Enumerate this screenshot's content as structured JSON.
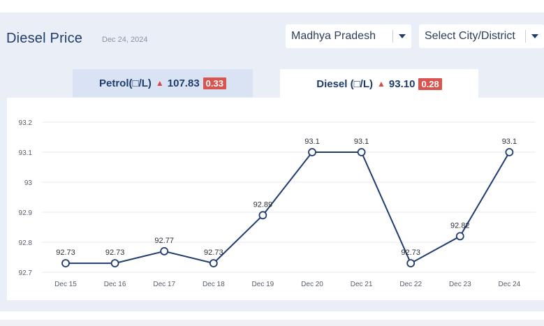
{
  "header": {
    "title": "Diesel Price",
    "date": "Dec 24, 2024",
    "state_select": "Madhya Pradesh",
    "city_select": "Select City/District"
  },
  "tabs": [
    {
      "label": "Petrol(□/L)",
      "arrow": "▲",
      "price": "107.83",
      "change": "0.33"
    },
    {
      "label": "Diesel (□/L)",
      "arrow": "▲",
      "price": "93.10",
      "change": "0.28"
    }
  ],
  "colors": {
    "line": "#1f3c6e",
    "badge": "#d9534f",
    "grid": "#e6e9ee"
  },
  "chart_data": {
    "type": "line",
    "categories": [
      "Dec 15",
      "Dec 16",
      "Dec 17",
      "Dec 18",
      "Dec 19",
      "Dec 20",
      "Dec 21",
      "Dec 22",
      "Dec 23",
      "Dec 24"
    ],
    "values": [
      92.73,
      92.73,
      92.77,
      92.73,
      92.89,
      93.1,
      93.1,
      92.73,
      92.82,
      93.1
    ],
    "data_labels": [
      "92.73",
      "92.73",
      "92.77",
      "92.73",
      "92.89",
      "93.1",
      "93.1",
      "92.73",
      "92.82",
      "93.1"
    ],
    "y_ticks": [
      "92.7",
      "92.8",
      "92.9",
      "93",
      "93.1",
      "93.2"
    ],
    "ylim": [
      92.7,
      93.2
    ],
    "grid": true
  }
}
